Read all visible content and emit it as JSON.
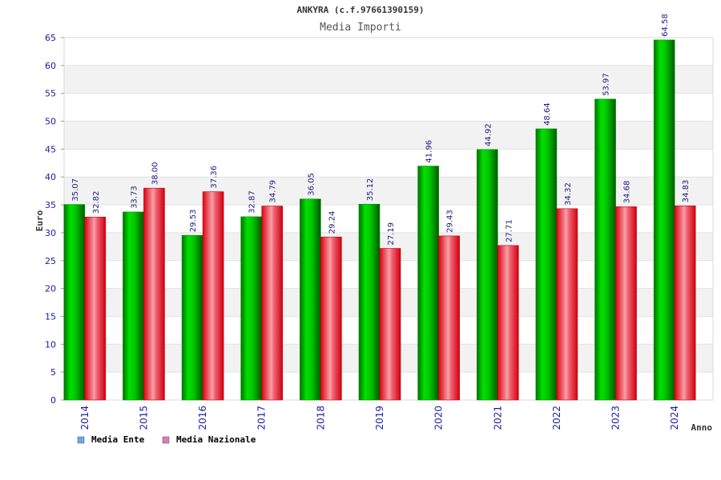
{
  "chart_data": {
    "type": "bar",
    "title": "ANKYRA (c.f.97661390159)",
    "subtitle": "Media Importi",
    "xlabel": "Anno",
    "ylabel": "Euro",
    "ylim": [
      0,
      65
    ],
    "yticks": [
      "0",
      "5",
      "10",
      "15",
      "20",
      "25",
      "30",
      "35",
      "40",
      "45",
      "50",
      "55",
      "60",
      "65"
    ],
    "categories": [
      "2014",
      "2015",
      "2016",
      "2017",
      "2018",
      "2019",
      "2020",
      "2021",
      "2022",
      "2023",
      "2024"
    ],
    "series": [
      {
        "name": "Media Ente",
        "color": "#00c000",
        "legend_color": "#6fa8e8",
        "values": [
          35.07,
          33.73,
          29.53,
          32.87,
          36.05,
          35.12,
          41.96,
          44.92,
          48.64,
          53.97,
          64.58
        ],
        "labels": [
          "35.07",
          "33.73",
          "29.53",
          "32.87",
          "36.05",
          "35.12",
          "41.96",
          "44.92",
          "48.64",
          "53.97",
          "64.58"
        ]
      },
      {
        "name": "Media Nazionale",
        "color": "#ff1a1a",
        "legend_color": "#e07ab8",
        "values": [
          32.82,
          38.0,
          37.36,
          34.79,
          29.24,
          27.19,
          29.43,
          27.71,
          34.32,
          34.68,
          34.83
        ],
        "labels": [
          "32.82",
          "38.00",
          "37.36",
          "34.79",
          "29.24",
          "27.19",
          "29.43",
          "27.71",
          "34.32",
          "34.68",
          "34.83"
        ]
      }
    ],
    "grid": true,
    "legend_position": "bottom-left"
  }
}
